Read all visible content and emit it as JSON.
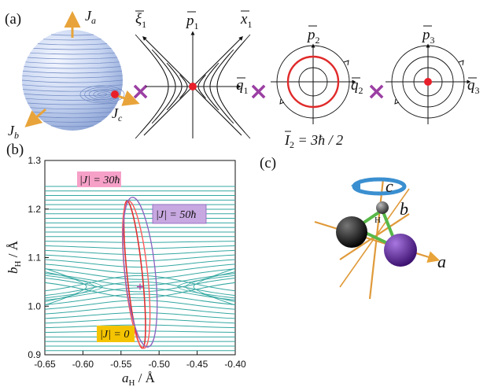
{
  "panel_labels": {
    "a": "(a)",
    "b": "(b)",
    "c": "(c)"
  },
  "panel_a": {
    "sphere_axes": {
      "a": "J",
      "a_sub": "a",
      "b": "J",
      "b_sub": "b",
      "c": "J",
      "c_sub": "c"
    },
    "hyperbolic": {
      "xi_label": "ξ",
      "xi_sub": "1",
      "p_label": "p",
      "p_sub": "1",
      "x_label": "x",
      "x_sub": "1",
      "q_label": "q",
      "q_sub": "1"
    },
    "circle2": {
      "p_label": "p",
      "p_sub": "2",
      "q_label": "q",
      "q_sub": "2",
      "action": "I",
      "action_sub": "2",
      "action_value": " = 3ħ / 2"
    },
    "circle3": {
      "p_label": "p",
      "p_sub": "3",
      "q_label": "q",
      "q_sub": "3"
    },
    "cross_symbol": "×",
    "colors": {
      "sphere": "#b8c9ea",
      "orbit": "#e02a2a",
      "cross": "#9b3fa3",
      "axis_arrow": "#e8a43a"
    }
  },
  "panel_b": {
    "xlabel": "a",
    "xlabel_sub": "H",
    "xlabel_unit": " / Å",
    "ylabel": "b",
    "ylabel_sub": "H",
    "ylabel_unit": " / Å",
    "xticks": [
      "-0.65",
      "-0.60",
      "-0.55",
      "-0.50",
      "-0.45",
      "-0.40"
    ],
    "yticks": [
      "0.9",
      "1.0",
      "1.1",
      "1.2",
      "1.3"
    ],
    "labels": {
      "j30": "|J| = 30ħ",
      "j50": "|J| = 50ħ",
      "j0": "|J| = 0"
    },
    "colors": {
      "contour": "#35a8a2",
      "j0": "#e03030",
      "j30": "#ff5a5a",
      "j50": "#8a62c0",
      "tag_pink": "#f6a0c8",
      "tag_purple": "#c8a8e0",
      "tag_yellow": "#f5c400"
    }
  },
  "panel_c": {
    "axis_labels": {
      "a": "a",
      "b": "b",
      "c": "c"
    },
    "atom_label": "H",
    "colors": {
      "axes": "#e09a3a",
      "bond": "#58b848",
      "atom_black": "#1a1a1a",
      "atom_purple": "#6a2fa8",
      "arrow": "#3a8fd0"
    }
  },
  "chart_data": {
    "type": "contour",
    "xlabel": "aH / Å",
    "ylabel": "bH / Å",
    "xlim": [
      -0.65,
      -0.4
    ],
    "ylim": [
      0.9,
      1.3
    ],
    "saddle_point": {
      "x": -0.525,
      "y": 1.04
    },
    "series": [
      {
        "name": "|J| = 0",
        "center": [
          -0.532,
          1.065
        ],
        "x_range": [
          -0.54,
          -0.52
        ],
        "y_range": [
          0.915,
          1.22
        ]
      },
      {
        "name": "|J| = 30ħ",
        "center": [
          -0.53,
          1.065
        ],
        "x_range": [
          -0.545,
          -0.515
        ],
        "y_range": [
          0.915,
          1.22
        ]
      },
      {
        "name": "|J| = 50ħ",
        "center": [
          -0.525,
          1.07
        ],
        "x_range": [
          -0.545,
          -0.505
        ],
        "y_range": [
          0.915,
          1.225
        ]
      }
    ]
  }
}
